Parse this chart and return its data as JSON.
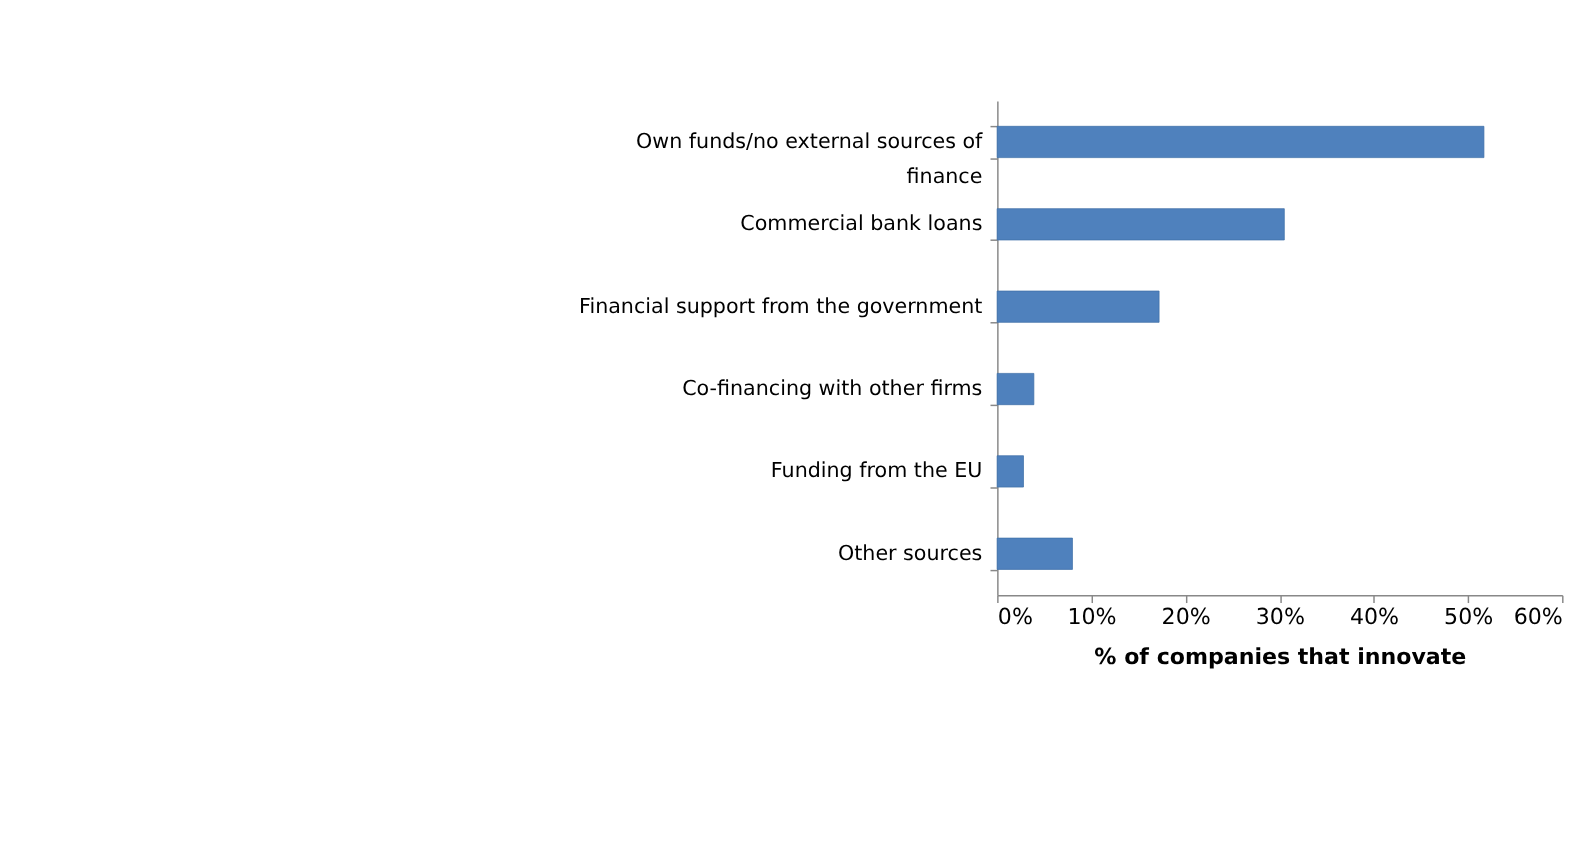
{
  "chart_data": {
    "type": "bar",
    "orientation": "horizontal",
    "xlabel": "% of companies that innovate",
    "categories": [
      "Own funds/no external sources of finance",
      "Commercial bank loans",
      "Financial support from the government",
      "Co-financing with other firms",
      "Funding from the EU",
      "Other sources"
    ],
    "values": [
      51.7,
      30.5,
      17.2,
      3.9,
      2.8,
      8.0
    ],
    "color": "#4f81bd",
    "xlim": [
      0,
      60
    ],
    "xticks": [
      {
        "value": 0,
        "label": "0%"
      },
      {
        "value": 10,
        "label": "10%"
      },
      {
        "value": 20,
        "label": "20%"
      },
      {
        "value": 30,
        "label": "30%"
      },
      {
        "value": 40,
        "label": "40%"
      },
      {
        "value": 50,
        "label": "50%"
      },
      {
        "value": 60,
        "label": "60%"
      }
    ],
    "grid": false
  }
}
